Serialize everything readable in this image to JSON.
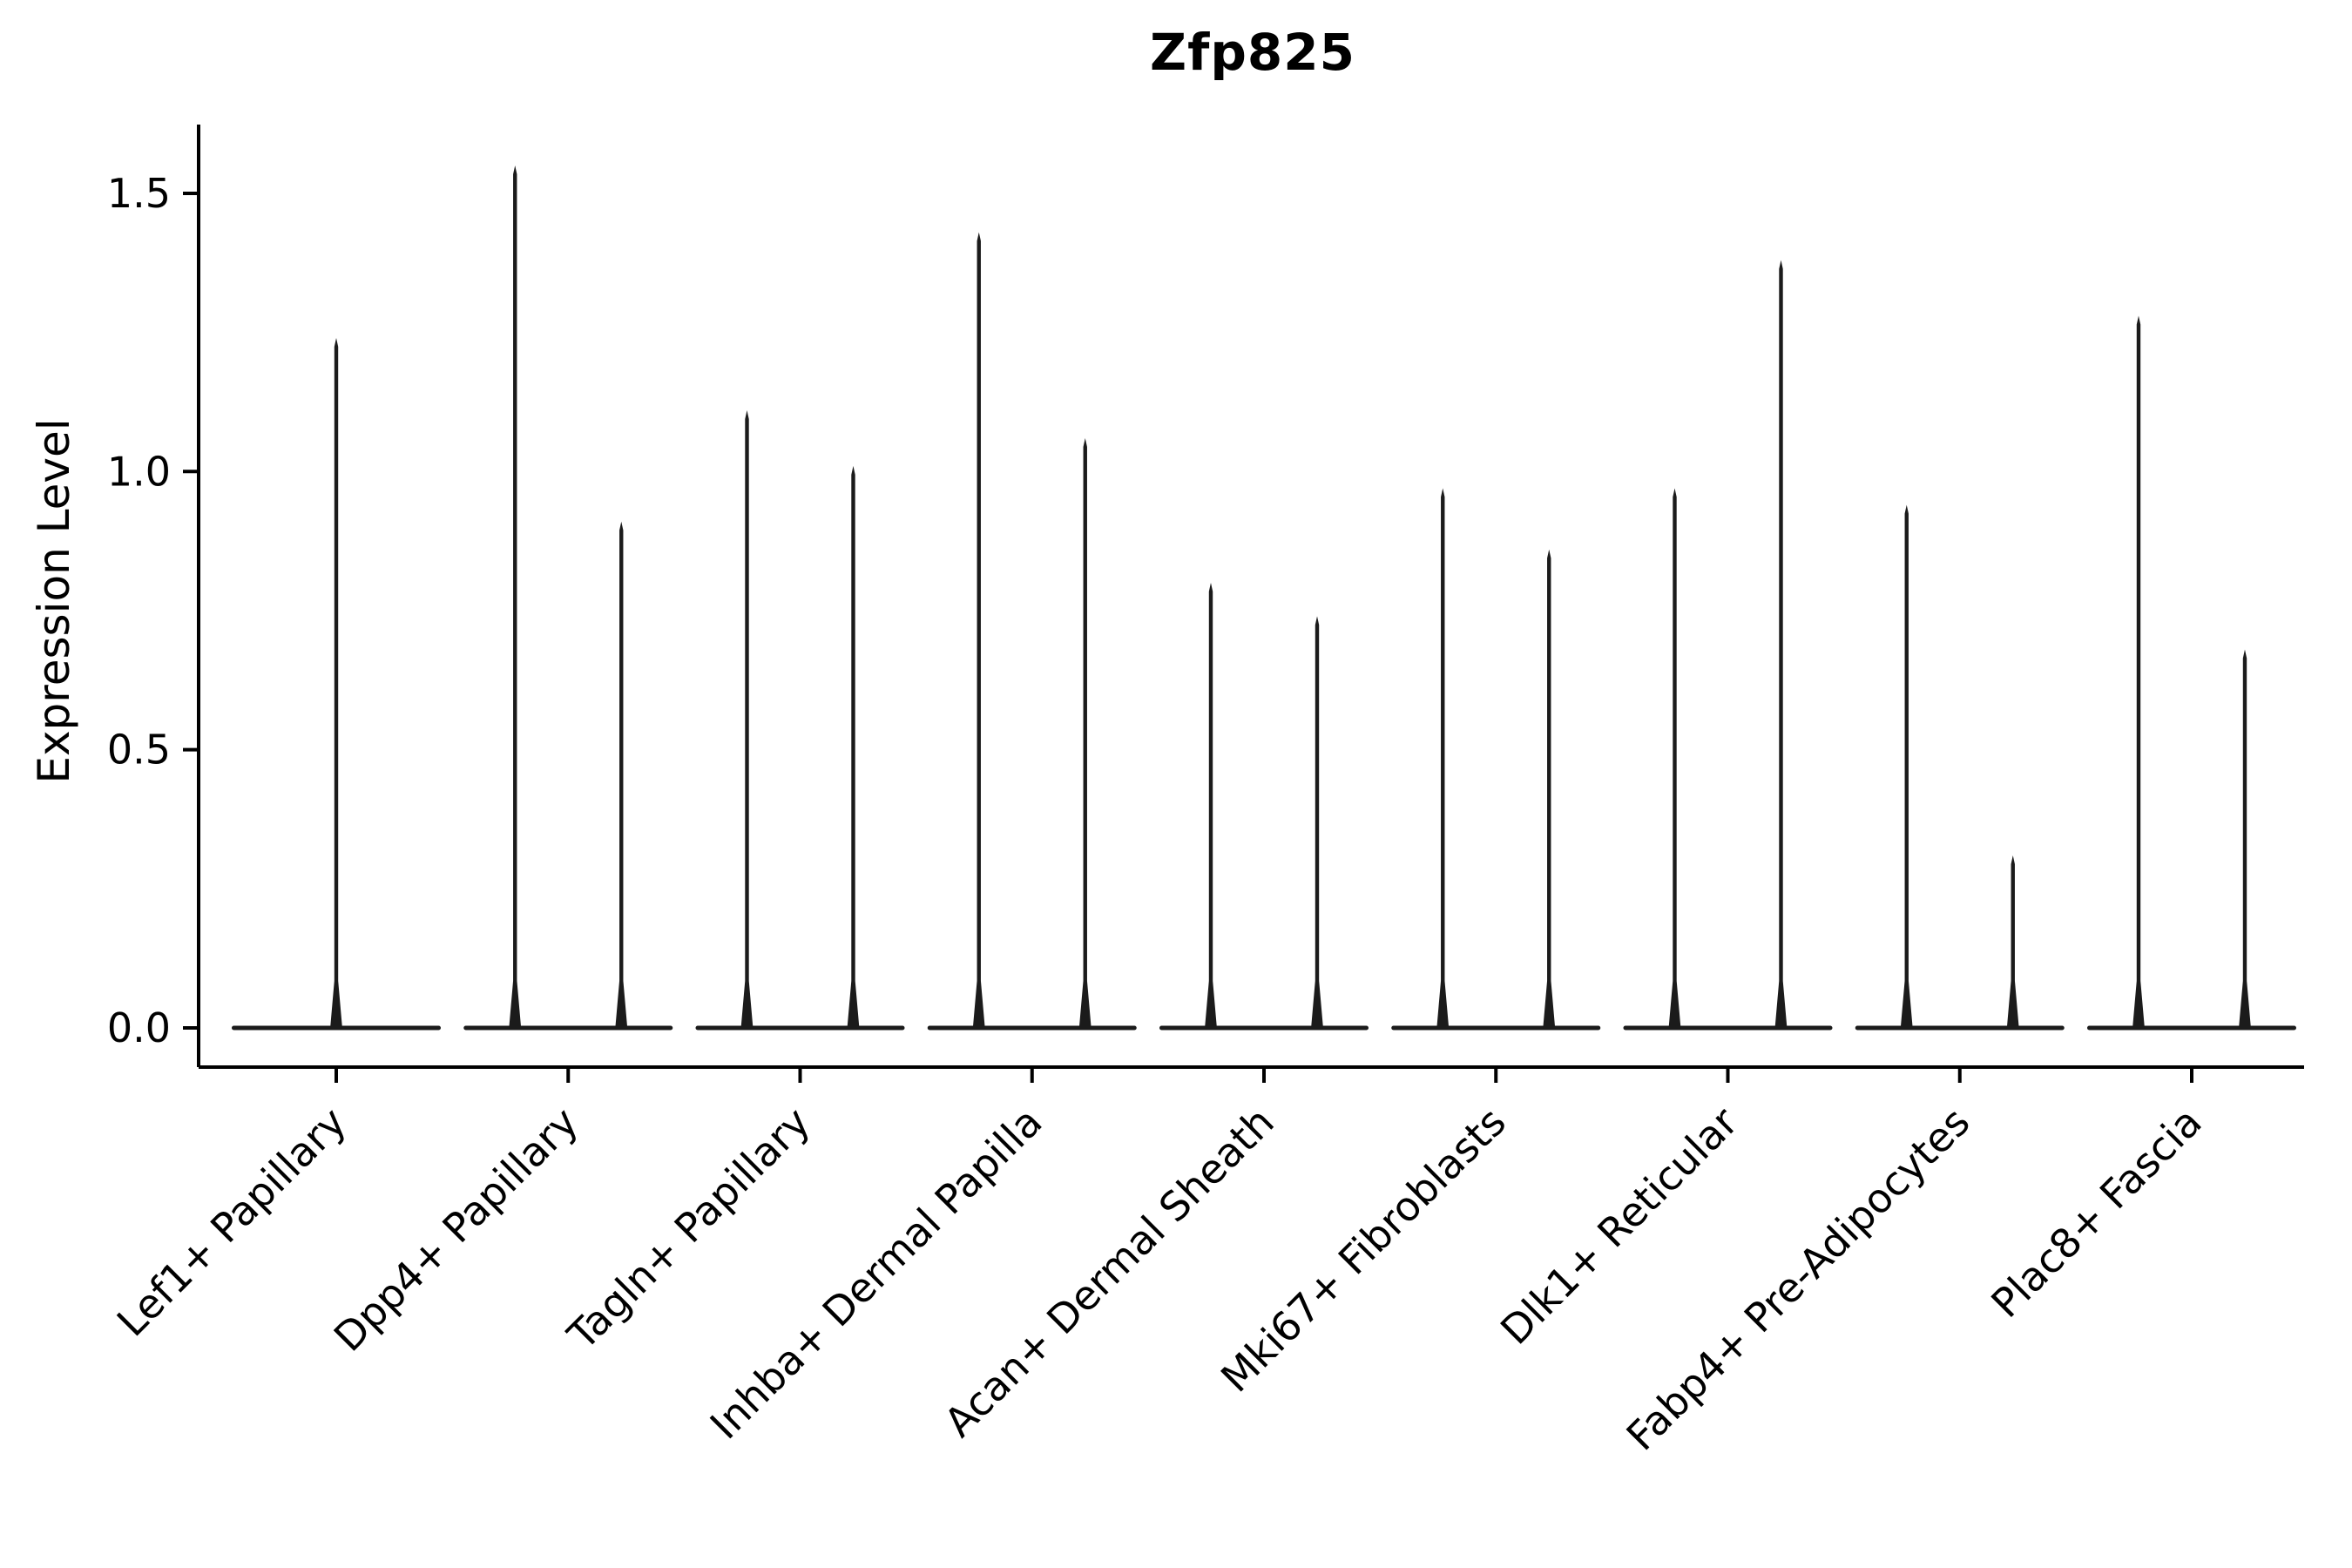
{
  "chart_data": {
    "type": "violin",
    "title": "Zfp825",
    "ylabel": "Expression Level",
    "xlabel": "",
    "ylim": [
      0.0,
      1.62
    ],
    "yticks": [
      0.0,
      0.5,
      1.0,
      1.5
    ],
    "grid": "off",
    "legend": "none",
    "style": "near-zero-density violins: wide flat base at 0 with thin vertical spikes up to each maximum expression value",
    "categories": [
      "Lef1+ Papillary",
      "Dpp4+ Papillary",
      "Tagln+ Papillary",
      "Inhba+ Dermal Papilla",
      "Acan+ Dermal Sheath",
      "Mki67+ Fibroblasts",
      "Dlk1+ Reticular",
      "Fabp4+ Pre-Adipocytes",
      "Plac8+ Fascia"
    ],
    "violins": [
      {
        "category": "Lef1+ Papillary",
        "baseline": 0.0,
        "spike_maxima": [
          1.24
        ]
      },
      {
        "category": "Dpp4+ Papillary",
        "baseline": 0.0,
        "spike_maxima": [
          1.55,
          0.91
        ]
      },
      {
        "category": "Tagln+ Papillary",
        "baseline": 0.0,
        "spike_maxima": [
          1.11,
          1.01
        ]
      },
      {
        "category": "Inhba+ Dermal Papilla",
        "baseline": 0.0,
        "spike_maxima": [
          1.43,
          1.06
        ]
      },
      {
        "category": "Acan+ Dermal Sheath",
        "baseline": 0.0,
        "spike_maxima": [
          0.8,
          0.74
        ]
      },
      {
        "category": "Mki67+ Fibroblasts",
        "baseline": 0.0,
        "spike_maxima": [
          0.97,
          0.86
        ]
      },
      {
        "category": "Dlk1+ Reticular",
        "baseline": 0.0,
        "spike_maxima": [
          0.97,
          1.38
        ]
      },
      {
        "category": "Fabp4+ Pre-Adipocytes",
        "baseline": 0.0,
        "spike_maxima": [
          0.94,
          0.31
        ]
      },
      {
        "category": "Plac8+ Fascia",
        "baseline": 0.0,
        "spike_maxima": [
          1.28,
          0.68
        ]
      }
    ]
  }
}
